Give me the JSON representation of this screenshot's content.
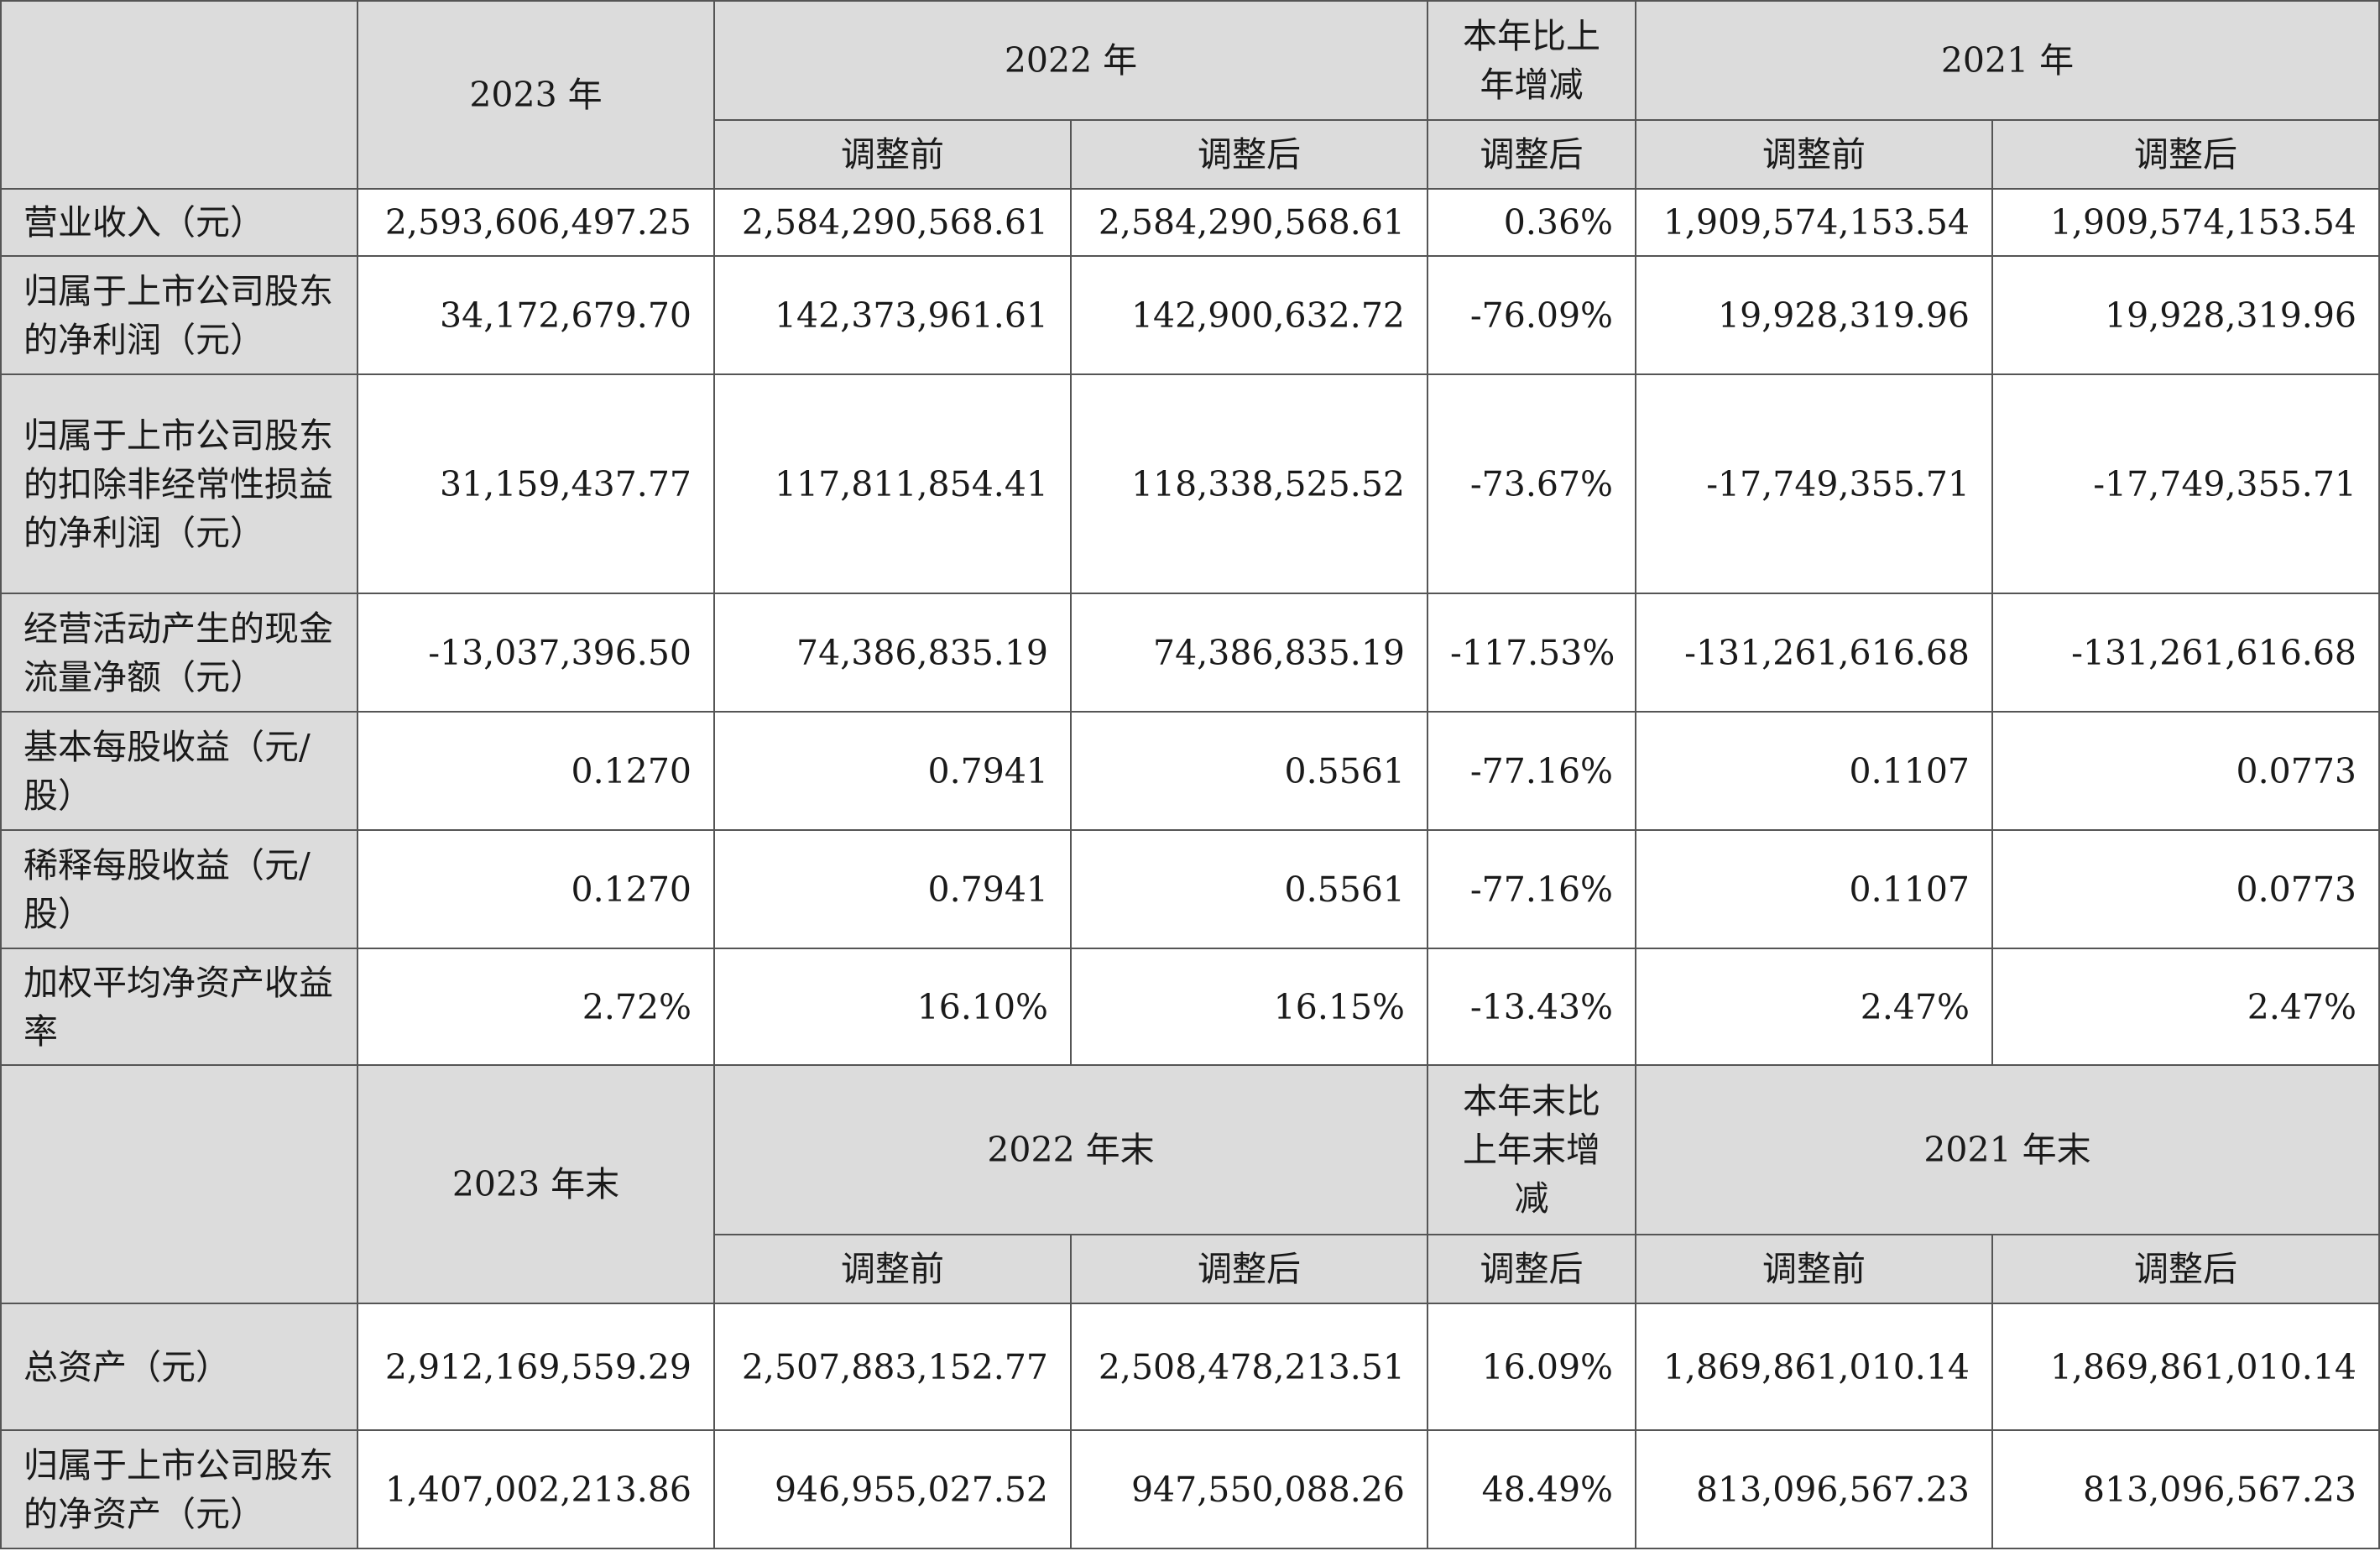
{
  "header1": {
    "year_2023": "2023 年",
    "year_2022": "2022 年",
    "change": "本年比上年增减",
    "year_2021": "2021 年",
    "sub": [
      "调整前",
      "调整后",
      "调整后",
      "调整前",
      "调整后"
    ]
  },
  "rows1": [
    {
      "label": "营业收入（元）",
      "values": [
        "2,593,606,497.25",
        "2,584,290,568.61",
        "2,584,290,568.61",
        "0.36%",
        "1,909,574,153.54",
        "1,909,574,153.54"
      ]
    },
    {
      "label": "归属于上市公司股东的净利润（元）",
      "values": [
        "34,172,679.70",
        "142,373,961.61",
        "142,900,632.72",
        "-76.09%",
        "19,928,319.96",
        "19,928,319.96"
      ]
    },
    {
      "label": "归属于上市公司股东的扣除非经常性损益的净利润（元）",
      "values": [
        "31,159,437.77",
        "117,811,854.41",
        "118,338,525.52",
        "-73.67%",
        "-17,749,355.71",
        "-17,749,355.71"
      ]
    },
    {
      "label": "经营活动产生的现金流量净额（元）",
      "values": [
        "-13,037,396.50",
        "74,386,835.19",
        "74,386,835.19",
        "-117.53%",
        "-131,261,616.68",
        "-131,261,616.68"
      ]
    },
    {
      "label": "基本每股收益（元/股）",
      "values": [
        "0.1270",
        "0.7941",
        "0.5561",
        "-77.16%",
        "0.1107",
        "0.0773"
      ]
    },
    {
      "label": "稀释每股收益（元/股）",
      "values": [
        "0.1270",
        "0.7941",
        "0.5561",
        "-77.16%",
        "0.1107",
        "0.0773"
      ]
    },
    {
      "label": "加权平均净资产收益率",
      "values": [
        "2.72%",
        "16.10%",
        "16.15%",
        "-13.43%",
        "2.47%",
        "2.47%"
      ]
    }
  ],
  "header2": {
    "year_2023": "2023 年末",
    "year_2022": "2022 年末",
    "change": "本年末比上年末增减",
    "year_2021": "2021 年末",
    "sub": [
      "调整前",
      "调整后",
      "调整后",
      "调整前",
      "调整后"
    ]
  },
  "rows2": [
    {
      "label": "总资产（元）",
      "values": [
        "2,912,169,559.29",
        "2,507,883,152.77",
        "2,508,478,213.51",
        "16.09%",
        "1,869,861,010.14",
        "1,869,861,010.14"
      ]
    },
    {
      "label": "归属于上市公司股东的净资产（元）",
      "values": [
        "1,407,002,213.86",
        "946,955,027.52",
        "947,550,088.26",
        "48.49%",
        "813,096,567.23",
        "813,096,567.23"
      ]
    }
  ]
}
